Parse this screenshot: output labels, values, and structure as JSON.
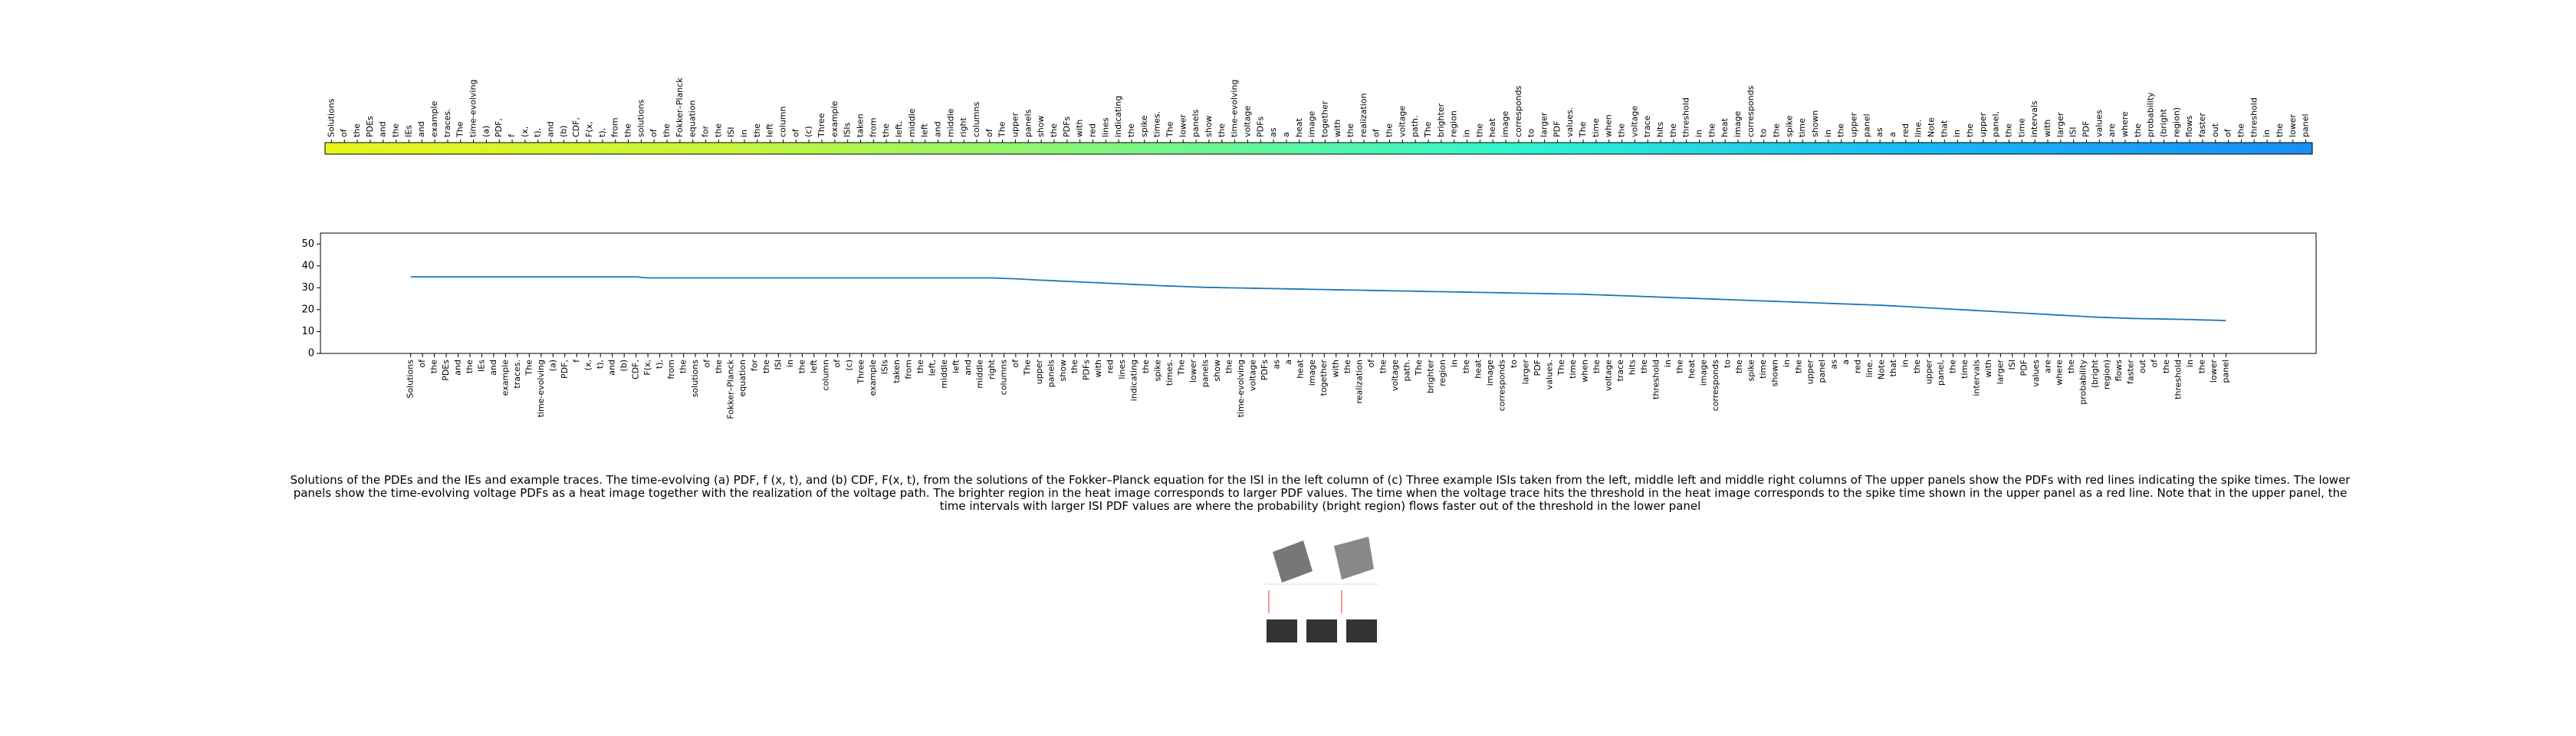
{
  "chart_data": {
    "type": "line",
    "categories": [
      "Solutions",
      "of",
      "the",
      "PDEs",
      "and",
      "the",
      "IEs",
      "and",
      "example",
      "traces.",
      "The",
      "time-evolving",
      "(a)",
      "PDF,",
      "f",
      "(x,",
      "t),",
      "and",
      "(b)",
      "CDF,",
      "F(x,",
      "t),",
      "from",
      "the",
      "solutions",
      "of",
      "the",
      "Fokker–Planck",
      "equation",
      "for",
      "the",
      "ISI",
      "in",
      "the",
      "left",
      "column",
      "of",
      "(c)",
      "Three",
      "example",
      "ISIs",
      "taken",
      "from",
      "the",
      "left,",
      "middle",
      "left",
      "and",
      "middle",
      "right",
      "columns",
      "of",
      "The",
      "upper",
      "panels",
      "show",
      "the",
      "PDFs",
      "with",
      "red",
      "lines",
      "indicating",
      "the",
      "spike",
      "times.",
      "The",
      "lower",
      "panels",
      "show",
      "the",
      "time-evolving",
      "voltage",
      "PDFs",
      "as",
      "a",
      "heat",
      "image",
      "together",
      "with",
      "the",
      "realization",
      "of",
      "the",
      "voltage",
      "path.",
      "The",
      "brighter",
      "region",
      "in",
      "the",
      "heat",
      "image",
      "corresponds",
      "to",
      "larger",
      "PDF",
      "values.",
      "The",
      "time",
      "when",
      "the",
      "voltage",
      "trace",
      "hits",
      "the",
      "threshold",
      "in",
      "the",
      "heat",
      "image",
      "corresponds",
      "to",
      "the",
      "spike",
      "time",
      "shown",
      "in",
      "the",
      "upper",
      "panel",
      "as",
      "a",
      "red",
      "line.",
      "Note",
      "that",
      "in",
      "the",
      "upper",
      "panel,",
      "the",
      "time",
      "intervals",
      "with",
      "larger",
      "ISI",
      "PDF",
      "values",
      "are",
      "where",
      "the",
      "probability",
      "(bright",
      "region)",
      "flows",
      "faster",
      "out",
      "of",
      "the",
      "threshold",
      "in",
      "the",
      "lower",
      "panel"
    ],
    "series": [
      {
        "color": "#1f77b4",
        "values": [
          35,
          35,
          35,
          35,
          35,
          35,
          35,
          35,
          35,
          35,
          35,
          35,
          35,
          35,
          35,
          35,
          35,
          35,
          35,
          35,
          34.5,
          34.5,
          34.5,
          34.5,
          34.5,
          34.5,
          34.5,
          34.5,
          34.5,
          34.5,
          34.5,
          34.5,
          34.5,
          34.5,
          34.5,
          34.5,
          34.5,
          34.5,
          34.5,
          34.5,
          34.5,
          34.5,
          34.5,
          34.5,
          34.5,
          34.5,
          34.5,
          34.5,
          34.5,
          34.5,
          34.3,
          34.1,
          33.8,
          33.5,
          33.3,
          33.0,
          32.8,
          32.5,
          32.3,
          32.0,
          31.8,
          31.5,
          31.3,
          31.0,
          30.8,
          30.6,
          30.4,
          30.2,
          30.1,
          30.0,
          29.9,
          29.8,
          29.7,
          29.6,
          29.5,
          29.4,
          29.3,
          29.2,
          29.1,
          29.0,
          28.9,
          28.8,
          28.7,
          28.6,
          28.5,
          28.4,
          28.3,
          28.2,
          28.1,
          28.0,
          27.9,
          27.8,
          27.7,
          27.6,
          27.5,
          27.4,
          27.3,
          27.2,
          27.1,
          27.0,
          26.8,
          26.6,
          26.4,
          26.2,
          26.0,
          25.8,
          25.6,
          25.4,
          25.2,
          25.0,
          24.8,
          24.6,
          24.4,
          24.2,
          24.0,
          23.8,
          23.6,
          23.4,
          23.2,
          23.0,
          22.8,
          22.6,
          22.4,
          22.2,
          22.0,
          21.7,
          21.4,
          21.1,
          20.8,
          20.5,
          20.2,
          19.9,
          19.6,
          19.3,
          19.0,
          18.7,
          18.4,
          18.1,
          17.8,
          17.5,
          17.2,
          16.9,
          16.6,
          16.4,
          16.2,
          16.0,
          15.9,
          15.8,
          15.7,
          15.6,
          15.5,
          15.3,
          15.2,
          15.0
        ]
      }
    ],
    "ylim": [
      0,
      55
    ],
    "yticks": [
      0,
      10,
      20,
      30,
      40,
      50
    ],
    "colorbar_colors": [
      "#e8f51a",
      "#c6f53a",
      "#7ef57e",
      "#2ef5d0",
      "#17b8f5",
      "#1a8cf5"
    ],
    "caption": "Solutions of the PDEs and the IEs and example traces. The time-evolving (a) PDF, f (x, t), and (b) CDF, F(x, t), from the solutions of the Fokker–Planck equation for the ISI in the left column of (c) Three example ISIs taken from the left, middle left and middle right columns of The upper panels show the PDFs with red lines indicating the spike times. The lower panels show the time-evolving voltage PDFs as a heat image together with the realization of the voltage path. The brighter region in the heat image corresponds to larger PDF values. The time when the voltage trace hits the threshold in the heat image corresponds to the spike time shown in the upper panel as a red line. Note that in the upper panel, the time intervals with larger ISI PDF values are where the probability (bright region) flows faster out of the threshold in the lower panel"
  }
}
